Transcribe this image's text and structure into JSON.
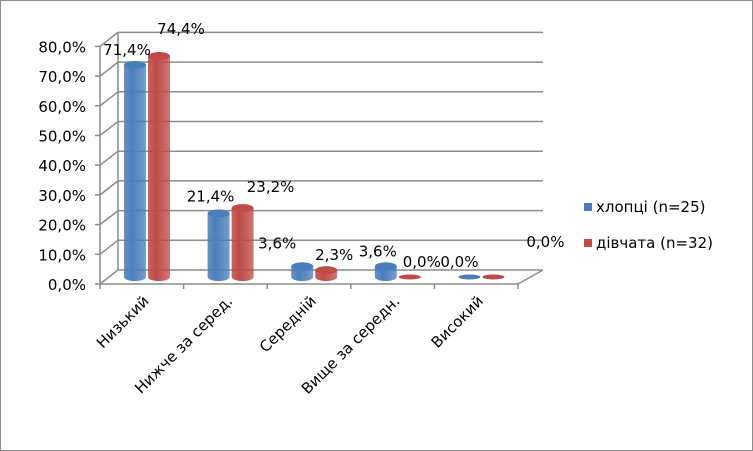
{
  "chart_data": {
    "type": "bar",
    "style": "3d-cylinder",
    "categories": [
      "Низький",
      "Нижче за серед.",
      "Середній",
      "Вище за середн.",
      "Високий"
    ],
    "series": [
      {
        "name": "хлопці (n=25)",
        "color": "#4a7ebb",
        "values": [
          71.4,
          21.4,
          3.6,
          3.6,
          0.0
        ],
        "labels": [
          "71,4%",
          "21,4%",
          "3,6%",
          "3,6%",
          "0,0%"
        ]
      },
      {
        "name": "дівчата (n=32)",
        "color": "#be4b48",
        "values": [
          74.4,
          23.2,
          2.3,
          0.0,
          0.0
        ],
        "labels": [
          "74,4%",
          "23,2%",
          "2,3%",
          "0,0%",
          "0,0%"
        ]
      }
    ],
    "yticks": [
      "0,0%",
      "10,0%",
      "20,0%",
      "30,0%",
      "40,0%",
      "50,0%",
      "60,0%",
      "70,0%",
      "80,0%"
    ],
    "ylim": [
      0,
      80
    ],
    "grid": true,
    "legend": "right",
    "title": "",
    "xlabel": "",
    "ylabel": ""
  }
}
